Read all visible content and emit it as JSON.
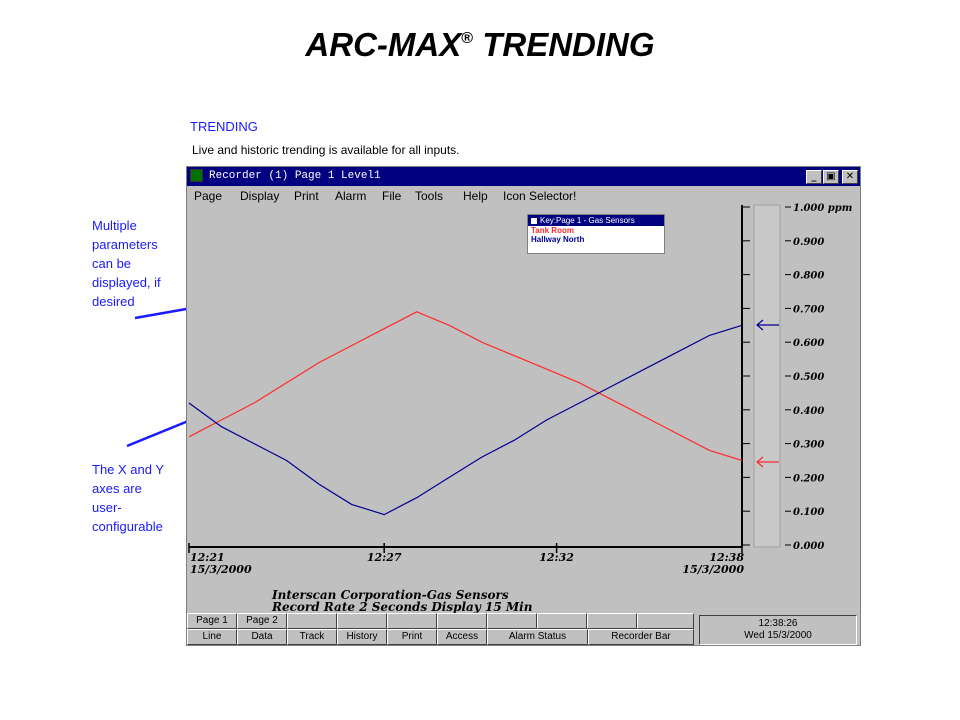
{
  "slide": {
    "title": "ARC-MAX",
    "title_mark": "®",
    "title_suffix": "TRENDING",
    "section_heading": "TRENDING",
    "section_desc": "Live and historic trending is available for all inputs.",
    "callout_top": [
      "Multiple",
      "parameters",
      "can be",
      "displayed, if",
      "desired"
    ],
    "callout_bottom": [
      "The X and Y",
      "axes are",
      "user-",
      "configurable"
    ],
    "accent_color": "#1a1aff"
  },
  "window": {
    "title": "Recorder (1)  Page 1 Level1",
    "controls": {
      "minimize": "_",
      "maximize": "▣",
      "close": "✕"
    },
    "titlebar_color": "#000080"
  },
  "menu": [
    "Page",
    "Display",
    "Print",
    "Alarm",
    "File",
    "Tools",
    "Help",
    "Icon Selector!"
  ],
  "legend": {
    "title": "Key:Page 1 - Gas Sensors",
    "items": [
      {
        "label": "Tank Room",
        "color": "#ff2a2a"
      },
      {
        "label": "Hallway North",
        "color": "#000090"
      }
    ]
  },
  "chart_data": {
    "type": "line",
    "y_unit": "ppm",
    "ylim": [
      0,
      1
    ],
    "y_ticks": [
      "1.000 ppm",
      "0.900",
      "0.800",
      "0.700",
      "0.600",
      "0.500",
      "0.400",
      "0.300",
      "0.200",
      "0.100",
      "0.000"
    ],
    "x_ticks": [
      {
        "time": "12:21",
        "date": "15/3/2000"
      },
      {
        "time": "12:27",
        "date": ""
      },
      {
        "time": "12:32",
        "date": ""
      },
      {
        "time": "12:38",
        "date": "15/3/2000"
      }
    ],
    "x_range_min": [
      0,
      17
    ],
    "series": [
      {
        "name": "Tank Room",
        "color": "#ff2a2a",
        "x": [
          0,
          1,
          2,
          3,
          4,
          5,
          6,
          7,
          8,
          9,
          10,
          11,
          12,
          13,
          14,
          15,
          16,
          17
        ],
        "y": [
          0.32,
          0.37,
          0.42,
          0.48,
          0.54,
          0.59,
          0.64,
          0.69,
          0.65,
          0.6,
          0.56,
          0.52,
          0.48,
          0.43,
          0.38,
          0.33,
          0.28,
          0.25
        ]
      },
      {
        "name": "Hallway North",
        "color": "#000090",
        "x": [
          0,
          1,
          2,
          3,
          4,
          5,
          6,
          7,
          8,
          9,
          10,
          11,
          12,
          13,
          14,
          15,
          16,
          17
        ],
        "y": [
          0.42,
          0.35,
          0.3,
          0.25,
          0.18,
          0.12,
          0.09,
          0.14,
          0.2,
          0.26,
          0.31,
          0.37,
          0.42,
          0.47,
          0.52,
          0.57,
          0.62,
          0.65
        ]
      }
    ]
  },
  "footer": {
    "line1": "Interscan Corporation-Gas Sensors",
    "line2": "Record Rate 2 Seconds Display 15 Min"
  },
  "statusbar": {
    "page_buttons": [
      "Page 1",
      "Page 2",
      "",
      "",
      "",
      "",
      "",
      "",
      "",
      ""
    ],
    "buttons": [
      "Line",
      "Data",
      "Track",
      "History",
      "Print",
      "Access",
      "Alarm Status",
      "Recorder Bar"
    ],
    "clock_time": "12:38:26",
    "clock_date": "Wed 15/3/2000"
  }
}
